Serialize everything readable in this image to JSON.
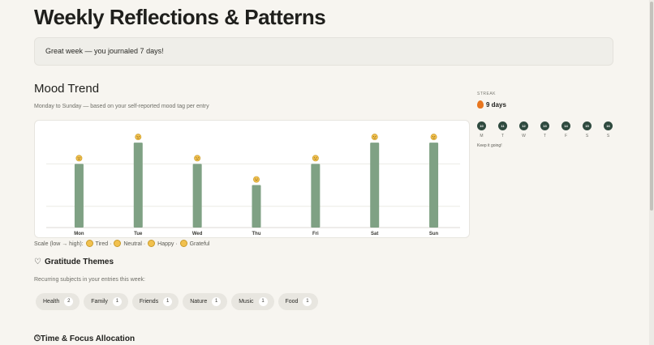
{
  "page_title": "Weekly Reflections & Patterns",
  "banner_text": "Great week — you journaled 7 days!",
  "mood": {
    "title": "Mood Trend",
    "subtitle": "Monday to Sunday — based on your self-reported mood tag per entry",
    "scale_prefix": "Scale (low → high):",
    "scale_items": [
      "Tired",
      "Neutral",
      "Happy",
      "Grateful"
    ]
  },
  "chart_data": {
    "type": "bar",
    "categories": [
      "Mon",
      "Tue",
      "Wed",
      "Thu",
      "Fri",
      "Sat",
      "Sun"
    ],
    "values": [
      3,
      4,
      3,
      2,
      3,
      4,
      4
    ],
    "ylim": [
      0,
      4.5
    ],
    "grid": true,
    "bar_color": "#7fa184",
    "marker": "emoji"
  },
  "gratitude": {
    "title": "Gratitude Themes",
    "icon": "heart-icon",
    "subtitle": "Recurring subjects in your entries this week:",
    "chips": [
      {
        "label": "Health",
        "count": "2"
      },
      {
        "label": "Family",
        "count": "1"
      },
      {
        "label": "Friends",
        "count": "1"
      },
      {
        "label": "Nature",
        "count": "1"
      },
      {
        "label": "Music",
        "count": "1"
      },
      {
        "label": "Food",
        "count": "1"
      }
    ]
  },
  "time_focus": {
    "title": "Time & Focus Allocation",
    "icon": "clock-icon"
  },
  "streak": {
    "label": "STREAK",
    "value": "9 days",
    "icon": "flame-icon",
    "days": [
      {
        "num": "10",
        "letter": "M"
      },
      {
        "num": "11",
        "letter": "T"
      },
      {
        "num": "12",
        "letter": "W"
      },
      {
        "num": "13",
        "letter": "T"
      },
      {
        "num": "14",
        "letter": "F"
      },
      {
        "num": "15",
        "letter": "S"
      },
      {
        "num": "16",
        "letter": "S"
      }
    ],
    "footer": "Keep it going!"
  },
  "colors": {
    "accent": "#2f4a3f",
    "bar": "#7fa184",
    "background": "#f7f5f0"
  }
}
